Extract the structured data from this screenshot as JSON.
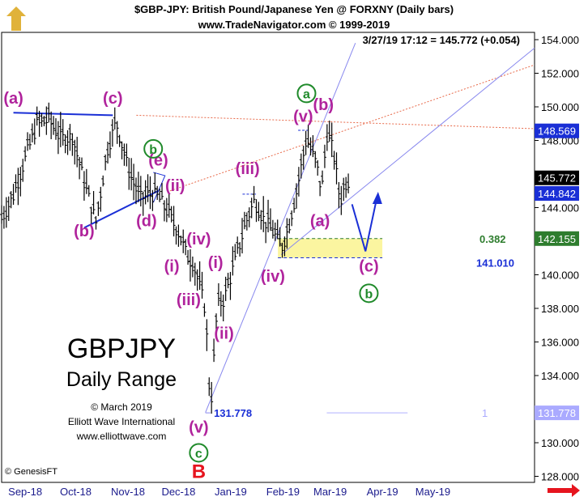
{
  "header": {
    "title": "$GBP-JPY:  British Pound/Japanese Yen @ FORXNY  (Daily bars)",
    "website": "www.TradeNavigator.com © 1999-2019",
    "quote": "3/27/19 17:12 = 145.772 (+0.054)"
  },
  "overlay_text": {
    "symbol": "GBPJPY",
    "subtitle": "Daily Range",
    "copyright": "© March 2019",
    "company": "Elliott Wave International",
    "url": "www.elliottwave.com",
    "software": "© GenesisFT"
  },
  "colors": {
    "background": "#ffffff",
    "bars": "#000000",
    "wave_labels": "#b0239c",
    "circle_labels": "#1f8a2a",
    "trendline_blue": "#1a2fd6",
    "channel": "#8888ee",
    "fib_red": "#e86a4a",
    "target_zone": "#fbf5a0",
    "price_box_black": "#000000",
    "price_box_blue": "#1a2fd6",
    "price_box_green": "#2e7d2e",
    "big_b": "#e6141e"
  },
  "chart_data": {
    "type": "bar",
    "title": "$GBP-JPY:  British Pound/Japanese Yen @ FORXNY  (Daily bars)",
    "x_tick_labels": [
      "Sep-18",
      "Oct-18",
      "Nov-18",
      "Dec-18",
      "Jan-19",
      "Feb-19",
      "Mar-19",
      "Apr-19",
      "May-19"
    ],
    "y_tick_labels": [
      "154.000",
      "152.000",
      "150.000",
      "148.000",
      "146.000",
      "144.000",
      "142.000",
      "140.000",
      "138.000",
      "136.000",
      "134.000",
      "132.000",
      "130.000",
      "128.000"
    ],
    "ylim": [
      127.8,
      154.6
    ],
    "series": [
      {
        "values": [
          [
            "2018-09-01",
            143.4
          ],
          [
            "2018-09-08",
            144.8
          ],
          [
            "2018-09-15",
            147.0
          ],
          [
            "2018-09-22",
            149.0
          ],
          [
            "2018-09-29",
            149.3
          ],
          [
            "2018-10-06",
            148.2
          ],
          [
            "2018-10-13",
            148.3
          ],
          [
            "2018-10-20",
            145.6
          ],
          [
            "2018-10-27",
            143.2
          ],
          [
            "2018-11-03",
            147.6
          ],
          [
            "2018-11-08",
            149.2
          ],
          [
            "2018-11-15",
            146.4
          ],
          [
            "2018-11-22",
            144.6
          ],
          [
            "2018-11-29",
            144.9
          ],
          [
            "2018-12-03",
            144.7
          ],
          [
            "2018-12-08",
            143.9
          ],
          [
            "2018-12-15",
            142.6
          ],
          [
            "2018-12-20",
            141.2
          ],
          [
            "2018-12-24",
            140.7
          ],
          [
            "2018-12-28",
            139.2
          ],
          [
            "2018-12-31",
            138.0
          ],
          [
            "2019-01-03",
            131.9
          ],
          [
            "2019-01-07",
            138.2
          ],
          [
            "2019-01-11",
            138.6
          ],
          [
            "2019-01-18",
            141.0
          ],
          [
            "2019-01-24",
            143.2
          ],
          [
            "2019-01-29",
            144.5
          ],
          [
            "2019-02-04",
            143.3
          ],
          [
            "2019-02-10",
            142.5
          ],
          [
            "2019-02-14",
            141.6
          ],
          [
            "2019-02-18",
            142.8
          ],
          [
            "2019-02-23",
            145.0
          ],
          [
            "2019-03-01",
            148.2
          ],
          [
            "2019-03-07",
            146.6
          ],
          [
            "2019-03-10",
            145.0
          ],
          [
            "2019-03-13",
            148.5
          ],
          [
            "2019-03-17",
            147.4
          ],
          [
            "2019-03-21",
            144.4
          ],
          [
            "2019-03-24",
            145.5
          ],
          [
            "2019-03-27",
            145.8
          ]
        ]
      }
    ],
    "wave_labels": [
      {
        "text": "(a)",
        "date": "2018-09-08",
        "price": 150.2
      },
      {
        "text": "(c)",
        "date": "2018-11-06",
        "price": 150.2
      },
      {
        "text": "(b)",
        "date": "2018-10-20",
        "price": 142.3
      },
      {
        "text": "(d)",
        "date": "2018-11-26",
        "price": 142.9
      },
      {
        "text": "(e)",
        "date": "2018-12-03",
        "price": 146.5
      },
      {
        "text": "(ii)",
        "date": "2018-12-13",
        "price": 145.0
      },
      {
        "text": "(i)",
        "date": "2018-12-11",
        "price": 140.2
      },
      {
        "text": "(iv)",
        "date": "2018-12-27",
        "price": 141.8
      },
      {
        "text": "(iii)",
        "date": "2018-12-21",
        "price": 138.2
      },
      {
        "text": "(v)",
        "date": "2018-12-27",
        "price": 130.6
      },
      {
        "text": "(i)",
        "date": "2019-01-06",
        "price": 140.4
      },
      {
        "text": "(ii)",
        "date": "2019-01-11",
        "price": 136.2
      },
      {
        "text": "(iii)",
        "date": "2019-01-25",
        "price": 146.0
      },
      {
        "text": "(iv)",
        "date": "2019-02-09",
        "price": 139.6
      },
      {
        "text": "(v)",
        "date": "2019-02-27",
        "price": 149.1
      },
      {
        "text": "(b)",
        "date": "2019-03-11",
        "price": 149.8
      },
      {
        "text": "(a)",
        "date": "2019-03-09",
        "price": 142.9
      },
      {
        "text": "(c)",
        "date": "2019-04-07",
        "price": 140.2
      }
    ],
    "circle_labels": [
      {
        "text": "b",
        "date": "2018-11-30",
        "price": 147.5
      },
      {
        "text": "a",
        "date": "2019-03-01",
        "price": 150.8
      },
      {
        "text": "c",
        "date": "2018-12-27",
        "price": 129.4
      },
      {
        "text": "b",
        "date": "2019-04-07",
        "price": 138.9
      }
    ],
    "major_label": {
      "text": "B",
      "date": "2018-12-27",
      "price": 127.9
    },
    "levels": [
      {
        "text": "0.382",
        "price": 142.155
      },
      {
        "text": "141.010",
        "price": 141.01
      },
      {
        "text": "131.778",
        "price": 131.778
      },
      {
        "text": "1",
        "price": 131.778
      }
    ],
    "price_boxes": [
      {
        "text": "148.569",
        "price": 148.569,
        "color": "#1a2fd6"
      },
      {
        "text": "145.772",
        "price": 145.772,
        "color": "#000000"
      },
      {
        "text": "144.842",
        "price": 144.842,
        "color": "#1a2fd6"
      },
      {
        "text": "142.155",
        "price": 142.155,
        "color": "#2e7d2e"
      },
      {
        "text": "131.778",
        "price": 131.778,
        "color": "#aaaaff"
      }
    ]
  }
}
